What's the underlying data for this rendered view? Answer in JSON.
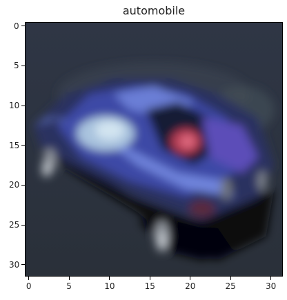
{
  "figure": {
    "title": "automobile",
    "x_ticks": [
      0,
      5,
      10,
      15,
      20,
      25,
      30
    ],
    "y_ticks": [
      0,
      5,
      10,
      15,
      20,
      25,
      30
    ],
    "image_grid": 32,
    "colors": {
      "background": "#2c3340",
      "car_body_dark": "#252d5a",
      "car_body_mid": "#3c4aa3",
      "car_body_light": "#6f86dd",
      "windshield": "#b5cde3",
      "red_light": "#b83c55",
      "shadow": "#060709",
      "tire_grey": "#8f949c"
    }
  }
}
